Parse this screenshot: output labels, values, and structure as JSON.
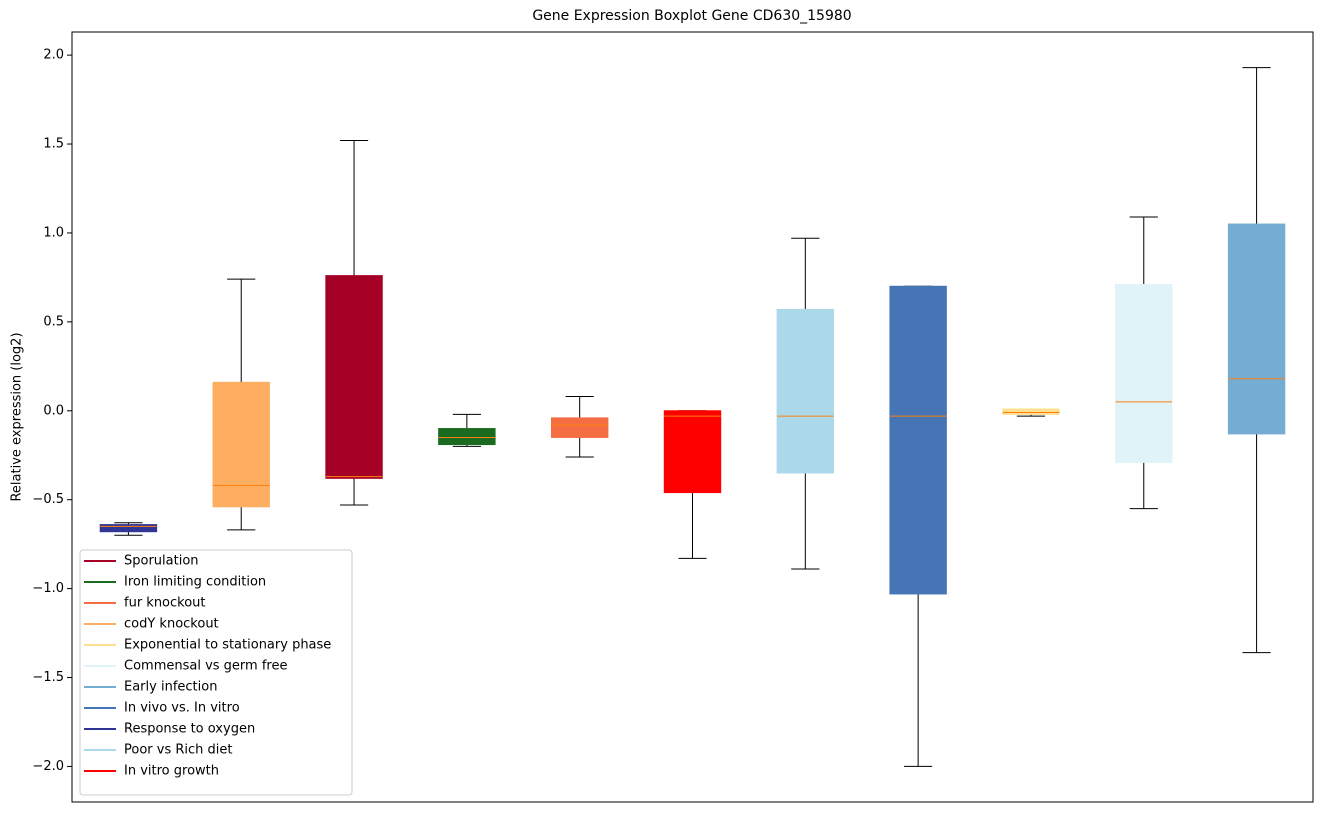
{
  "chart_data": {
    "type": "box",
    "title": "Gene Expression Boxplot Gene CD630_15980",
    "y_label": "Relative expression (log2)",
    "xlim": [
      0.5,
      11.5
    ],
    "ylim": [
      -2.2,
      2.13
    ],
    "yticks": [
      {
        "value": -2.0,
        "label": "−2.0"
      },
      {
        "value": -1.5,
        "label": "−1.5"
      },
      {
        "value": -1.0,
        "label": "−1.0"
      },
      {
        "value": -0.5,
        "label": "−0.5"
      },
      {
        "value": 0.0,
        "label": "0.0"
      },
      {
        "value": 0.5,
        "label": "0.5"
      },
      {
        "value": 1.0,
        "label": "1.0"
      },
      {
        "value": 1.5,
        "label": "1.5"
      },
      {
        "value": 2.0,
        "label": "2.0"
      }
    ],
    "legend": "lower left",
    "median_color": "#ff7f0e",
    "whisker_color": "#000000",
    "series": [
      {
        "name": "Sporulation",
        "color": "#a50026",
        "x": 3,
        "min": -0.53,
        "q1": -0.38,
        "median": -0.37,
        "q3": 0.76,
        "max": 1.52
      },
      {
        "name": "Iron limiting condition",
        "color": "#1a6b20",
        "x": 4,
        "min": -0.2,
        "q1": -0.19,
        "median": -0.15,
        "q3": -0.1,
        "max": -0.02
      },
      {
        "name": "fur knockout",
        "color": "#f46d43",
        "x": 5,
        "min": -0.26,
        "q1": -0.15,
        "median": -0.08,
        "q3": -0.04,
        "max": 0.08
      },
      {
        "name": "codY knockout",
        "color": "#fdae61",
        "x": 2,
        "min": -0.67,
        "q1": -0.54,
        "median": -0.42,
        "q3": 0.16,
        "max": 0.74
      },
      {
        "name": "Exponential to stationary phase",
        "color": "#fee090",
        "x": 9,
        "min": -0.03,
        "q1": -0.02,
        "median": -0.01,
        "q3": 0.01,
        "max": 0.01
      },
      {
        "name": "Commensal vs germ free",
        "color": "#e0f3f8",
        "x": 10,
        "min": -0.55,
        "q1": -0.29,
        "median": 0.05,
        "q3": 0.71,
        "max": 1.09
      },
      {
        "name": "Early infection",
        "color": "#74add1",
        "x": 11,
        "min": -1.36,
        "q1": -0.13,
        "median": 0.18,
        "q3": 1.05,
        "max": 1.93
      },
      {
        "name": "In vivo vs. In vitro",
        "color": "#4575b4",
        "x": 8,
        "min": -2.0,
        "q1": -1.03,
        "median": -0.03,
        "q3": 0.7,
        "max": 0.7
      },
      {
        "name": "Response to oxygen",
        "color": "#313695",
        "x": 1,
        "min": -0.7,
        "q1": -0.68,
        "median": -0.65,
        "q3": -0.64,
        "max": -0.63
      },
      {
        "name": "Poor vs Rich diet",
        "color": "#abd9e9",
        "x": 7,
        "min": -0.89,
        "q1": -0.35,
        "median": -0.03,
        "q3": 0.57,
        "max": 0.97
      },
      {
        "name": "In vitro growth",
        "color": "#ff0000",
        "x": 6,
        "min": -0.83,
        "q1": -0.46,
        "median": -0.03,
        "q3": 0.0,
        "max": 0.0
      }
    ]
  }
}
